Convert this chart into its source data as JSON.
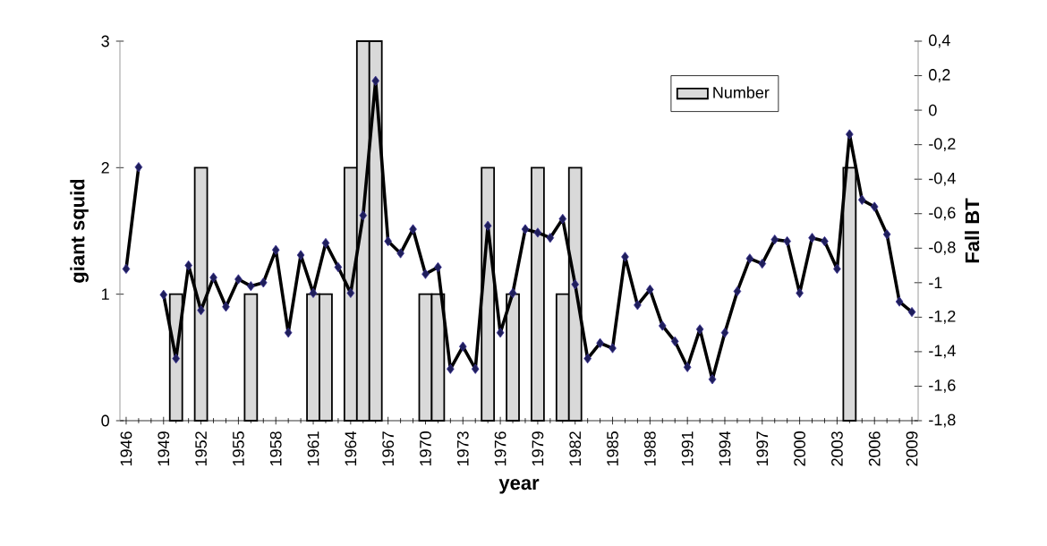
{
  "chart_data": {
    "type": "bar",
    "xlabel": "year",
    "ylabel": "giant squid",
    "y2label": "Fall BT",
    "x": [
      1946,
      1947,
      1948,
      1949,
      1950,
      1951,
      1952,
      1953,
      1954,
      1955,
      1956,
      1957,
      1958,
      1959,
      1960,
      1961,
      1962,
      1963,
      1964,
      1965,
      1966,
      1967,
      1968,
      1969,
      1970,
      1971,
      1972,
      1973,
      1974,
      1975,
      1976,
      1977,
      1978,
      1979,
      1980,
      1981,
      1982,
      1983,
      1984,
      1985,
      1986,
      1987,
      1988,
      1989,
      1990,
      1991,
      1992,
      1993,
      1994,
      1995,
      1996,
      1997,
      1998,
      1999,
      2000,
      2001,
      2002,
      2003,
      2004,
      2005,
      2006,
      2007,
      2008,
      2009
    ],
    "xlim": [
      1945.5,
      2009.5
    ],
    "xticks": [
      1946,
      1949,
      1952,
      1955,
      1958,
      1961,
      1964,
      1967,
      1970,
      1973,
      1976,
      1979,
      1982,
      1985,
      1988,
      1991,
      1994,
      1997,
      2000,
      2003,
      2006,
      2009
    ],
    "ylim": [
      0,
      3
    ],
    "yticks": [
      0,
      1,
      2,
      3
    ],
    "y2lim": [
      -1.8,
      0.4
    ],
    "y2ticks": [
      {
        "value": 0.4,
        "label": "0,4"
      },
      {
        "value": 0.2,
        "label": "0,2"
      },
      0,
      {
        "value": -0.2,
        "label": "-0,2"
      },
      {
        "value": -0.4,
        "label": "-0,4"
      },
      {
        "value": -0.6,
        "label": "-0,6"
      },
      {
        "value": -0.8,
        "label": "-0,8"
      },
      -1,
      {
        "value": -1.2,
        "label": "-1,2"
      },
      {
        "value": -1.4,
        "label": "-1,4"
      },
      {
        "value": -1.6,
        "label": "-1,6"
      },
      {
        "value": -1.8,
        "label": "-1,8"
      }
    ],
    "legend": "top right",
    "series": [
      {
        "name": "Number",
        "color": "#d9d9d9",
        "values": [
          null,
          null,
          null,
          null,
          1,
          null,
          2,
          null,
          null,
          null,
          1,
          null,
          null,
          null,
          null,
          1,
          1,
          null,
          2,
          3,
          3,
          null,
          null,
          null,
          1,
          1,
          null,
          null,
          null,
          2,
          null,
          1,
          null,
          2,
          null,
          1,
          2,
          null,
          null,
          null,
          null,
          null,
          null,
          null,
          null,
          null,
          null,
          null,
          null,
          null,
          null,
          null,
          null,
          null,
          null,
          null,
          null,
          null,
          2,
          null,
          null,
          null,
          null,
          null
        ]
      },
      {
        "type": "line",
        "axis": "y2",
        "color": "#000000",
        "marker": "diamond",
        "line_style": "solid",
        "values": [
          -0.92,
          -0.33,
          null,
          -1.07,
          -1.44,
          -0.9,
          -1.16,
          -0.97,
          -1.14,
          -0.98,
          -1.02,
          -1.0,
          -0.81,
          -1.29,
          -0.84,
          -1.06,
          -0.77,
          -0.91,
          -1.06,
          -0.61,
          0.17,
          -0.76,
          -0.83,
          -0.69,
          -0.95,
          -0.91,
          -1.5,
          -1.37,
          -1.5,
          -0.67,
          -1.29,
          -1.06,
          -0.69,
          -0.71,
          -0.74,
          -0.63,
          -1.01,
          -1.44,
          -1.35,
          -1.38,
          -0.85,
          -1.13,
          -1.04,
          -1.25,
          -1.34,
          -1.49,
          -1.27,
          -1.56,
          -1.29,
          -1.05,
          -0.86,
          -0.89,
          -0.75,
          -0.76,
          -1.06,
          -0.74,
          -0.76,
          -0.92,
          -0.14,
          -0.52,
          -0.56,
          -0.72,
          -1.11,
          -1.17
        ]
      }
    ]
  }
}
